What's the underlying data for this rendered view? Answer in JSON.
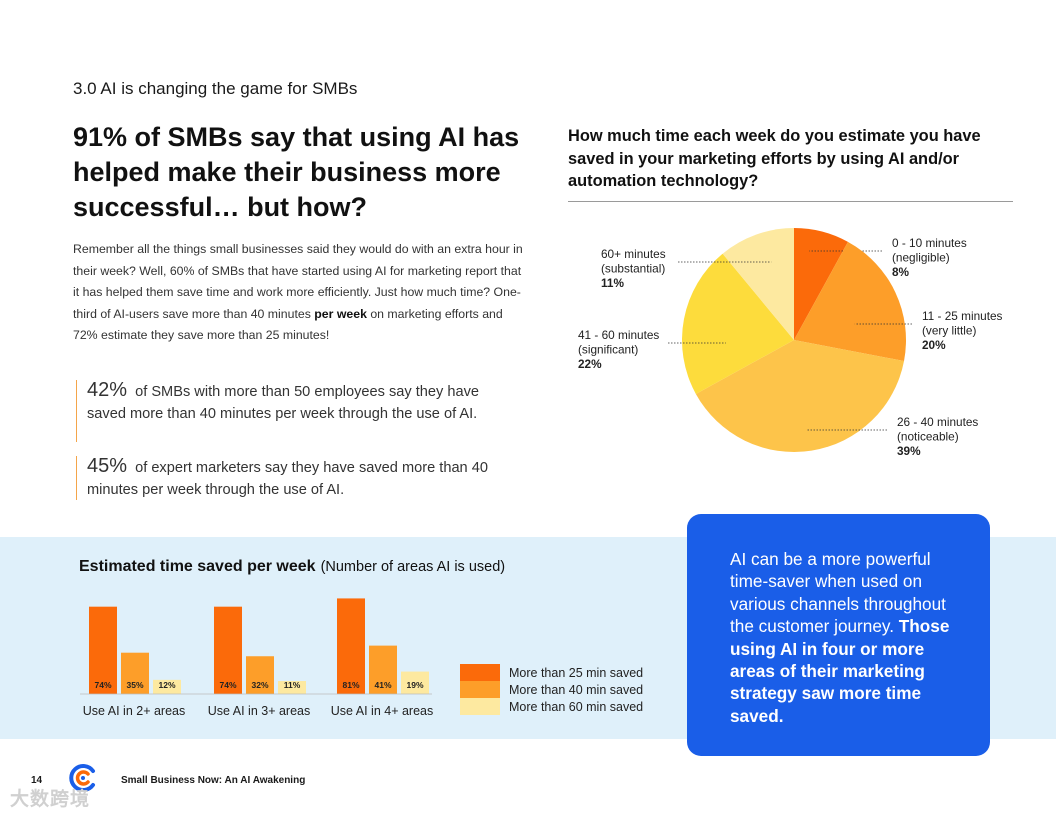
{
  "section_label": "3.0 AI is changing the game for SMBs",
  "headline": "91% of SMBs say that using AI has helped make their business more successful… but how?",
  "body": {
    "part1": "Remember all the things small businesses said they would do with an extra hour in their week? Well, 60% of SMBs that have started using AI for marketing report that it has helped them save time and work more efficiently. Just how much time? One-third of AI-users save more than 40 minutes ",
    "bold": "per week",
    "part2": " on marketing efforts and 72% estimate they save more than 25 minutes!"
  },
  "stats": [
    {
      "pct": "42%",
      "text": "of SMBs with more than 50 employees say they have saved more than 40 minutes per week through the use of AI."
    },
    {
      "pct": "45%",
      "text": "of expert marketers say they have saved more than 40 minutes per week through the use of AI."
    }
  ],
  "pie_question": "How much time each week do you estimate you have saved in your marketing efforts by using AI and/or automation technology?",
  "bar_title": {
    "bold": "Estimated time saved per week",
    "normal": "(Number of areas AI is used)"
  },
  "callout": {
    "normal": "AI can be a more powerful time-saver when used on various channels throughout the customer journey. ",
    "bold": "Those using AI in four or more areas of their marketing strategy saw more time saved."
  },
  "footer": {
    "page": "14",
    "title": "Small Business Now: An AI Awakening"
  },
  "watermark": "大数跨境",
  "colors": {
    "dark_orange": "#fb6a0a",
    "orange": "#fd9e29",
    "light_orange": "#fdc44a",
    "yellow": "#fddc3c",
    "pale_yellow": "#fde9a0",
    "blue": "#1a5ee8",
    "band": "#dff0fa"
  },
  "chart_data": [
    {
      "type": "pie",
      "title": "How much time each week do you estimate you have saved in your marketing efforts by using AI and/or automation technology?",
      "slices": [
        {
          "label": "0 - 10 minutes",
          "sub": "(negligible)",
          "value": 8,
          "display": "8%",
          "color": "#fb6a0a"
        },
        {
          "label": "11 - 25 minutes",
          "sub": "(very little)",
          "value": 20,
          "display": "20%",
          "color": "#fd9e29"
        },
        {
          "label": "26 - 40 minutes",
          "sub": "(noticeable)",
          "value": 39,
          "display": "39%",
          "color": "#fdc44a"
        },
        {
          "label": "41 - 60 minutes",
          "sub": "(significant)",
          "value": 22,
          "display": "22%",
          "color": "#fddc3c"
        },
        {
          "label": "60+ minutes",
          "sub": "(substantial)",
          "value": 11,
          "display": "11%",
          "color": "#fde9a0"
        }
      ]
    },
    {
      "type": "bar",
      "title": "Estimated time saved per week (Number of areas AI is used)",
      "categories": [
        "Use AI in 2+ areas",
        "Use AI in 3+ areas",
        "Use AI in 4+ areas"
      ],
      "series": [
        {
          "name": "More than 25 min saved",
          "values": [
            74,
            74,
            81
          ],
          "labels": [
            "74%",
            "74%",
            "81%"
          ],
          "color": "#fb6a0a"
        },
        {
          "name": "More than 40 min saved",
          "values": [
            35,
            32,
            41
          ],
          "labels": [
            "35%",
            "32%",
            "41%"
          ],
          "color": "#fd9e29"
        },
        {
          "name": "More than 60 min saved",
          "values": [
            12,
            11,
            19
          ],
          "labels": [
            "12%",
            "11%",
            "19%"
          ],
          "color": "#fde9a0"
        }
      ],
      "ylim": [
        0,
        100
      ]
    }
  ]
}
